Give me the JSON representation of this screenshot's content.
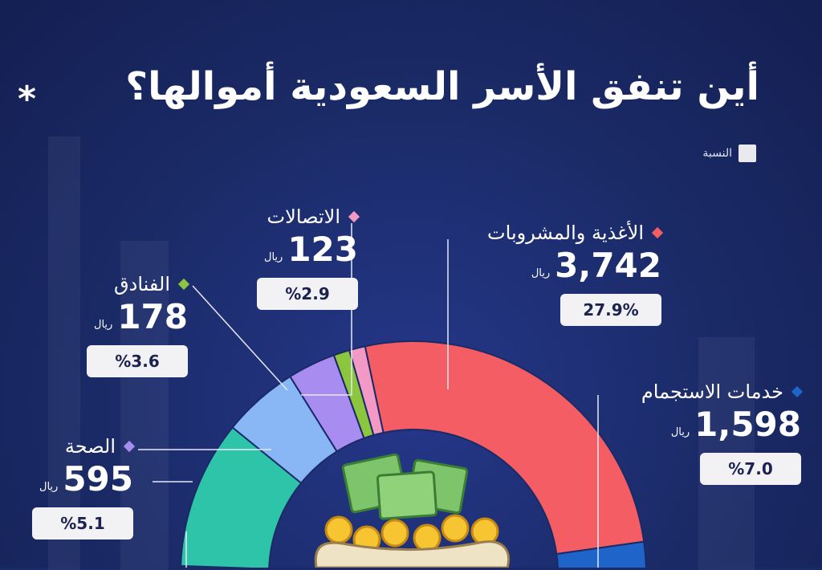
{
  "title": "أين تنفق الأسر السعودية أموالها؟",
  "asterisk": "*",
  "legend_label": "النسبة",
  "colors": {
    "background": "#1a2a66",
    "food": "#f45d63",
    "telecom": "#f29ac5",
    "hotels": "#8cc63f",
    "health": "#a98cf0",
    "blue_light": "#89b7f5",
    "teal": "#2ec4a9",
    "accommodation": "#1f64c8"
  },
  "chart_data": {
    "type": "pie",
    "style": "donut",
    "unit": "ريال",
    "segments": [
      {
        "label": "الأغذية والمشروبات",
        "value": 3742,
        "value_text": "3,742",
        "percent": 27.9,
        "percent_text": "27.9%",
        "color": "#f45d63"
      },
      {
        "label": "خدمات الاستجمام",
        "value": 1598,
        "value_text": "1,598",
        "percent": 7.0,
        "percent_text": "%7.0",
        "color": "#1f64c8"
      },
      {
        "label": "الاتصالات",
        "value": 123,
        "value_text": "123",
        "percent": 2.9,
        "percent_text": "%2.9",
        "color": "#f29ac5"
      },
      {
        "label": "الفنادق",
        "value": 178,
        "value_text": "178",
        "percent": 3.6,
        "percent_text": "%3.6",
        "color": "#8cc63f"
      },
      {
        "label": "الصحة",
        "value": 595,
        "value_text": "595",
        "percent": 5.1,
        "percent_text": "%5.1",
        "color": "#a98cf0"
      }
    ]
  }
}
